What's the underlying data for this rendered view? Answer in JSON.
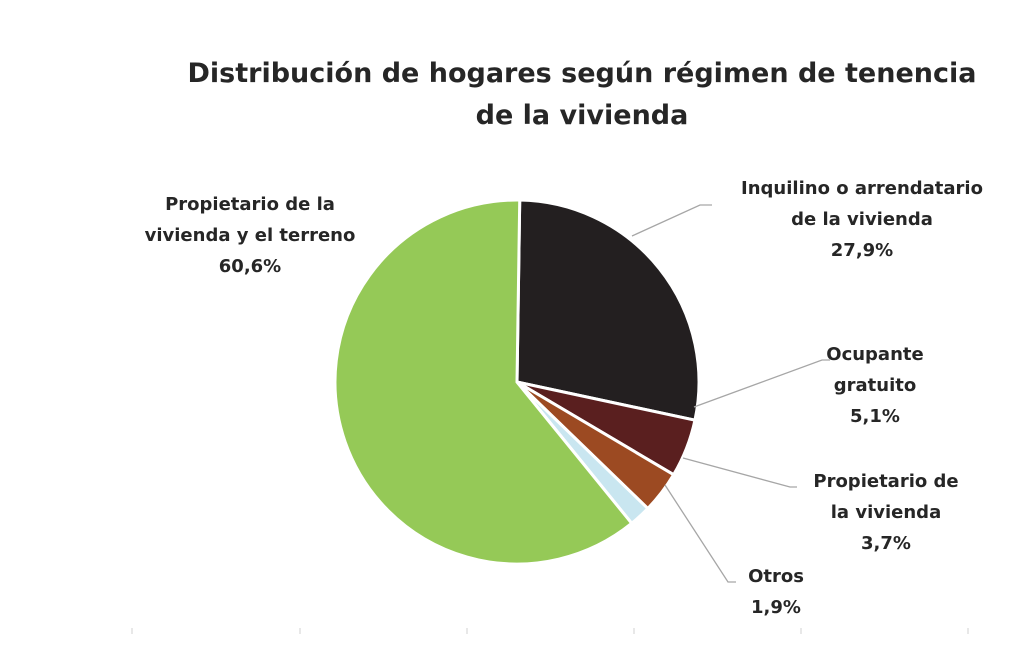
{
  "chart_data": {
    "type": "pie",
    "title": "Distribución de hogares según régimen de tenencia de la vivienda",
    "title_lines": [
      "Distribución de hogares según régimen de tenencia",
      "de la vivienda"
    ],
    "slices": [
      {
        "label_lines": [
          "Inquilino o arrendatario",
          "de la vivienda"
        ],
        "value": 27.9,
        "value_label": "27,9%",
        "color": "#231f20"
      },
      {
        "label_lines": [
          "Ocupante",
          "gratuito"
        ],
        "value": 5.1,
        "value_label": "5,1%",
        "color": "#5a1f1f"
      },
      {
        "label_lines": [
          "Propietario de",
          "la vivienda"
        ],
        "value": 3.7,
        "value_label": "3,7%",
        "color": "#9c4a22"
      },
      {
        "label_lines": [
          "Otros"
        ],
        "value": 1.9,
        "value_label": "1,9%",
        "color": "#c9e6f0"
      },
      {
        "label_lines": [
          "Propietario de la",
          "vivienda y el terreno"
        ],
        "value": 60.6,
        "value_label": "60,6%",
        "color": "#95c957"
      }
    ],
    "start_direction": "clockwise from 12 o'clock",
    "legend": "none (data labels with leader lines)"
  }
}
